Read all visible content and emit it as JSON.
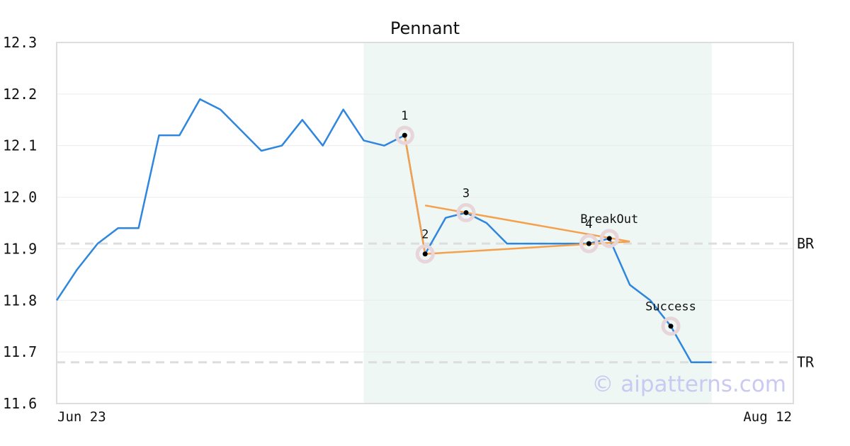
{
  "chart_data": {
    "type": "line",
    "title": "Pennant",
    "ylim": [
      11.6,
      12.3
    ],
    "yticks": [
      "12.3",
      "12.2",
      "12.1",
      "12.0",
      "11.9",
      "11.8",
      "11.7",
      "11.6"
    ],
    "x_start_label": "Jun 23",
    "x_end_label": "Aug 12",
    "grid": "horizontal",
    "colors": {
      "series": "#2e86de",
      "pattern": "#f5a04d",
      "highlight_region": "#eef7f3",
      "marker_halo": "#e8d5da",
      "reference_line": "#dddddd",
      "grid": "#ececec",
      "watermark": "#c9c9f2"
    },
    "series": [
      {
        "values": [
          11.8,
          11.86,
          11.91,
          11.94,
          11.94,
          12.12,
          12.12,
          12.19,
          12.17,
          12.13,
          12.09,
          12.1,
          12.15,
          12.1,
          12.17,
          12.11,
          12.1,
          12.12,
          11.89,
          11.96,
          11.97,
          11.95,
          11.91,
          11.91,
          11.91,
          11.91,
          11.91,
          11.92,
          11.83,
          11.8,
          11.75,
          11.68,
          11.68
        ]
      }
    ],
    "highlight_range": {
      "from_index": 15,
      "to_index": 32
    },
    "reference_lines": [
      {
        "label": "BR",
        "value": 11.91
      },
      {
        "label": "TR",
        "value": 11.68
      }
    ],
    "pattern_points": [
      {
        "label": "1",
        "index": 17,
        "value": 12.12
      },
      {
        "label": "2",
        "index": 18,
        "value": 11.89
      },
      {
        "label": "3",
        "index": 20,
        "value": 11.97
      },
      {
        "label": "4",
        "index": 26,
        "value": 11.91
      },
      {
        "label": "BreakOut",
        "index": 27,
        "value": 11.92
      },
      {
        "label": "Success",
        "index": 30,
        "value": 11.75
      }
    ],
    "pattern_lines": [
      [
        {
          "index": 17,
          "value": 12.12
        },
        {
          "index": 18,
          "value": 11.89
        },
        {
          "index": 28,
          "value": 11.914
        }
      ],
      [
        {
          "index": 18,
          "value": 11.984
        },
        {
          "index": 28,
          "value": 11.914
        }
      ]
    ]
  },
  "watermark": "© aipatterns.com"
}
